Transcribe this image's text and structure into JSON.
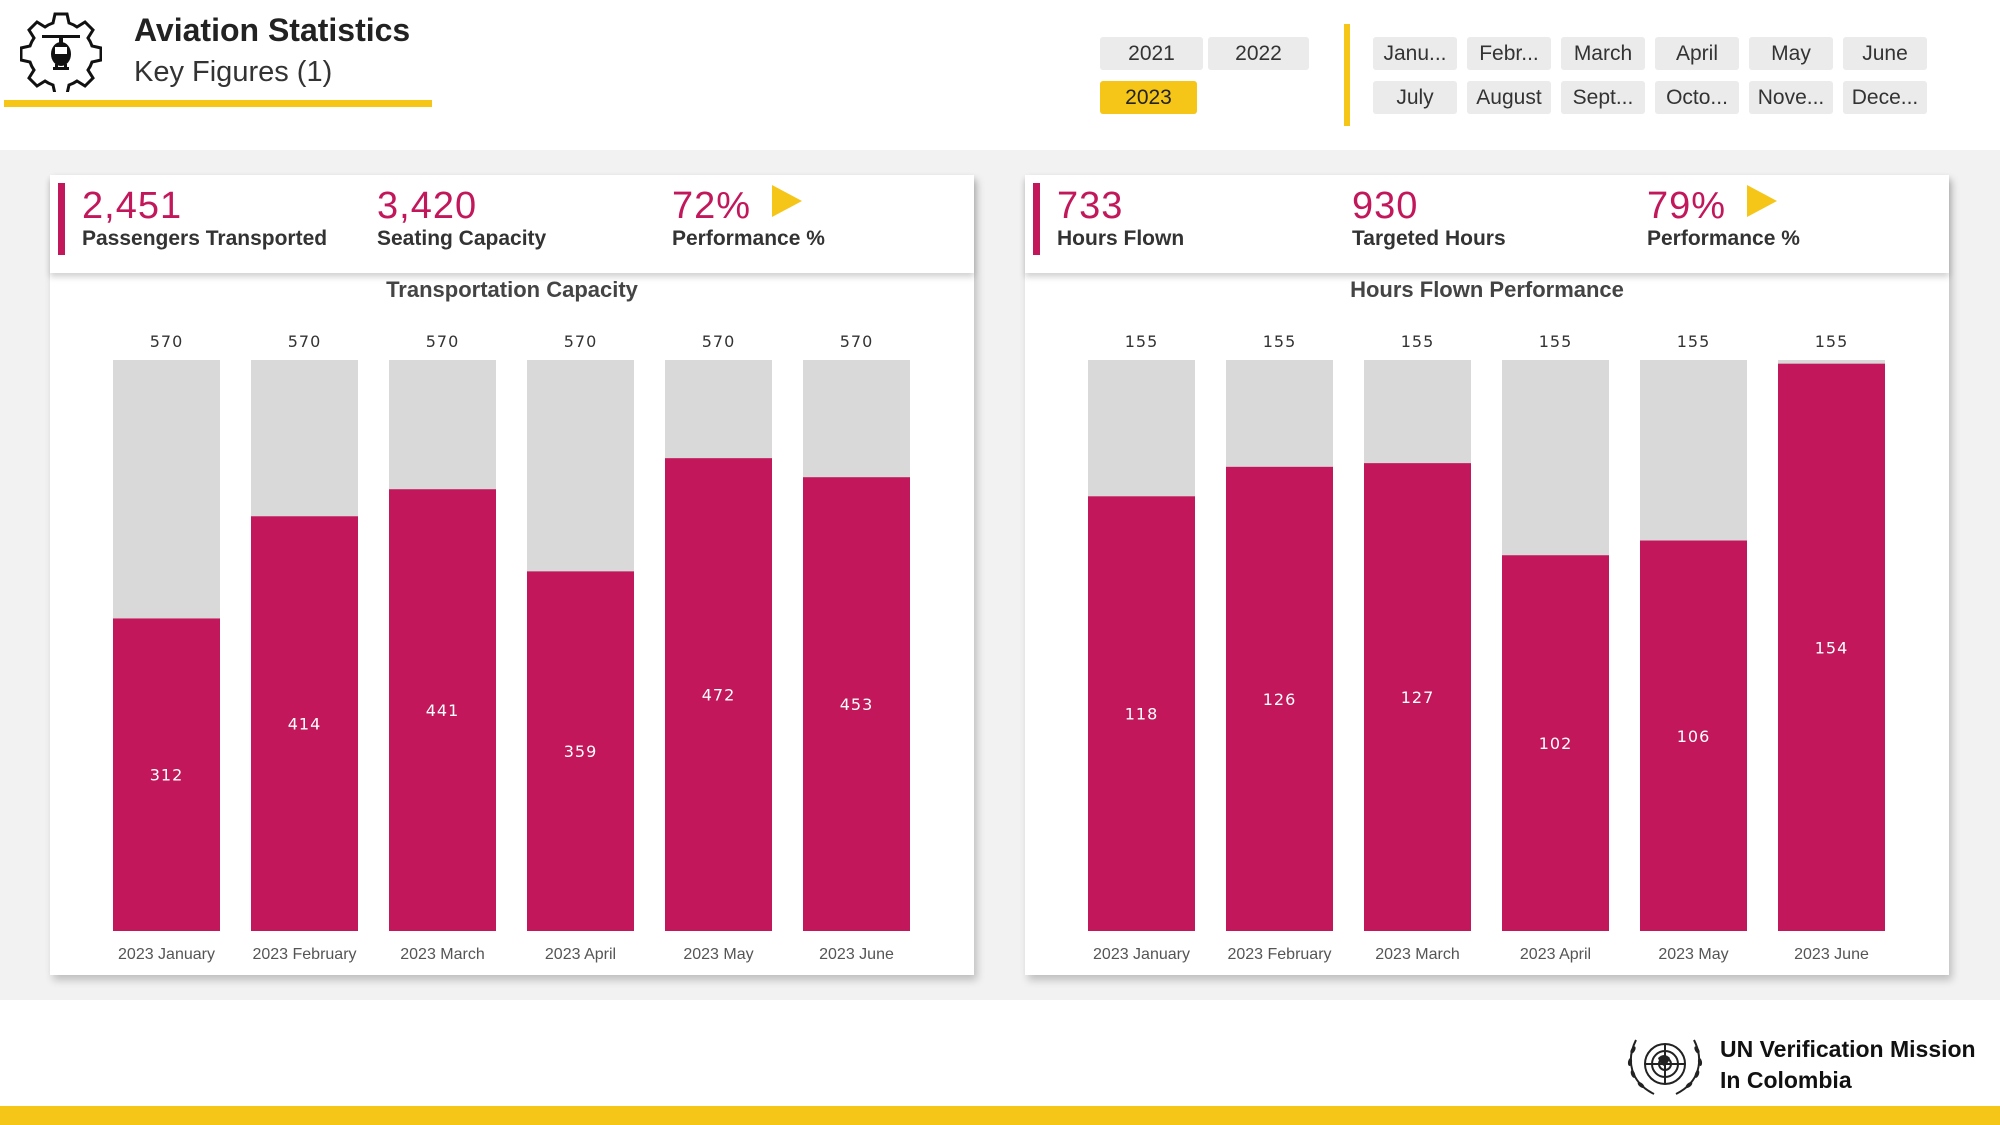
{
  "header": {
    "title": "Aviation Statistics",
    "subtitle": "Key Figures (1)",
    "logo_icon": "helicopter-gear-icon"
  },
  "year_slicer": {
    "options": [
      "2021",
      "2022",
      "2023"
    ],
    "selected": "2023"
  },
  "month_slicer": {
    "options": [
      "Janu...",
      "Febr...",
      "March",
      "April",
      "May",
      "June",
      "July",
      "August",
      "Sept...",
      "Octo...",
      "Nove...",
      "Dece..."
    ]
  },
  "left_panel": {
    "kpis": [
      {
        "value": "2,451",
        "label": "Passengers Transported"
      },
      {
        "value": "3,420",
        "label": "Seating Capacity"
      },
      {
        "value": "72%",
        "label": "Performance %"
      }
    ]
  },
  "right_panel": {
    "kpis": [
      {
        "value": "733",
        "label": "Hours Flown"
      },
      {
        "value": "930",
        "label": "Targeted Hours"
      },
      {
        "value": "79%",
        "label": "Performance %"
      }
    ]
  },
  "colors": {
    "accent": "#c2185b",
    "capacity": "#d9d9d9",
    "brand_yellow": "#f5c518"
  },
  "chart_data": [
    {
      "type": "bar",
      "title": "Transportation Capacity",
      "categories": [
        "2023 January",
        "2023 February",
        "2023 March",
        "2023 April",
        "2023 May",
        "2023 June"
      ],
      "series": [
        {
          "name": "Seating Capacity",
          "values": [
            570,
            570,
            570,
            570,
            570,
            570
          ]
        },
        {
          "name": "Passengers Transported",
          "values": [
            312,
            414,
            441,
            359,
            472,
            453
          ]
        }
      ],
      "ylim": [
        0,
        570
      ]
    },
    {
      "type": "bar",
      "title": "Hours Flown Performance",
      "categories": [
        "2023 January",
        "2023 February",
        "2023 March",
        "2023 April",
        "2023 May",
        "2023 June"
      ],
      "series": [
        {
          "name": "Targeted Hours",
          "values": [
            155,
            155,
            155,
            155,
            155,
            155
          ]
        },
        {
          "name": "Hours Flown",
          "values": [
            118,
            126,
            127,
            102,
            106,
            154
          ]
        }
      ],
      "ylim": [
        0,
        155
      ]
    }
  ],
  "footer": {
    "org_line1": "UN Verification Mission",
    "org_line2": "In Colombia",
    "emblem": "un-emblem-icon"
  }
}
